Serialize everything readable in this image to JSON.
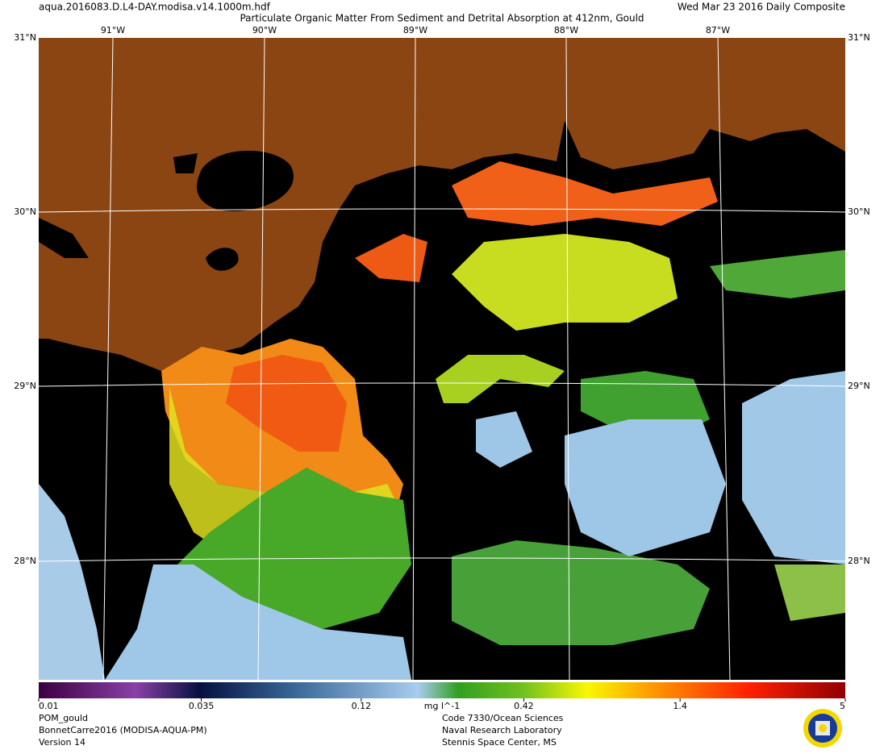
{
  "header": {
    "filename": "aqua.2016083.D.L4-DAY.modisa.v14.1000m.hdf",
    "title": "Particulate Organic Matter From Sediment and Detrital Absorption at 412nm, Gould",
    "date": "Wed Mar 23 2016 Daily Composite"
  },
  "map": {
    "lon_labels": [
      "91°W",
      "90°W",
      "89°W",
      "88°W",
      "87°W"
    ],
    "lat_labels": [
      "31°N",
      "30°N",
      "29°N",
      "28°N"
    ]
  },
  "colorbar": {
    "range": [
      0.01,
      5
    ],
    "log_scale": true,
    "ticks": [
      0.01,
      0.035,
      0.12,
      0.42,
      1.4,
      5
    ],
    "unit": "mg l^-1"
  },
  "footer": {
    "left": [
      "POM_gould",
      "BonnetCarre2016 (MODISA-AQUA-PM)",
      "Version 14"
    ],
    "center": [
      "Code 7330/Ocean Sciences",
      "Naval Research Laboratory",
      "Stennis Space Center, MS"
    ]
  }
}
